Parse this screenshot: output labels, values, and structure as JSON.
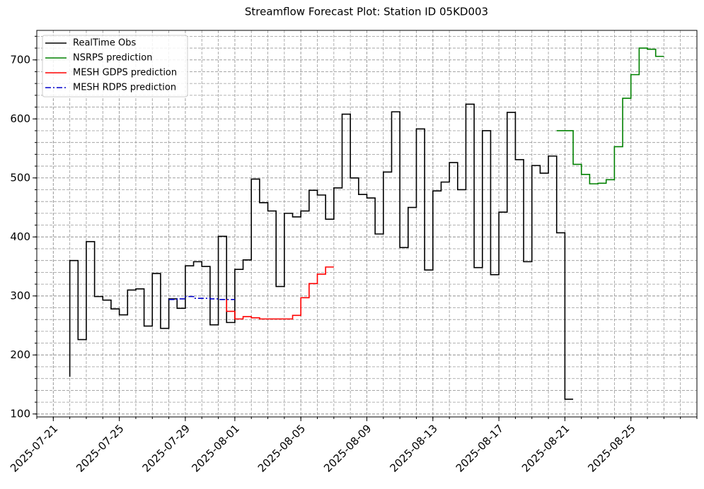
{
  "chart_data": {
    "type": "step",
    "title": "Streamflow Forecast Plot: Station ID 05KD003",
    "xlim": [
      "2025-07-20",
      "2025-08-29"
    ],
    "xticks": [
      "2025-07-21",
      "2025-07-25",
      "2025-07-29",
      "2025-08-01",
      "2025-08-05",
      "2025-08-09",
      "2025-08-13",
      "2025-08-17",
      "2025-08-21",
      "2025-08-25"
    ],
    "ylim": [
      95,
      750
    ],
    "yticks": [
      100,
      200,
      300,
      400,
      500,
      600,
      700
    ],
    "grid": true,
    "legend": "upper left",
    "series": [
      {
        "name": "RealTime Obs",
        "color": "#000000",
        "linestyle": "solid",
        "x": [
          "2025-07-22T00:00",
          "2025-07-22T12:00",
          "2025-07-23T00:00",
          "2025-07-23T12:00",
          "2025-07-24T00:00",
          "2025-07-24T12:00",
          "2025-07-25T00:00",
          "2025-07-25T12:00",
          "2025-07-26T00:00",
          "2025-07-26T12:00",
          "2025-07-27T00:00",
          "2025-07-27T12:00",
          "2025-07-28T00:00",
          "2025-07-28T12:00",
          "2025-07-29T00:00",
          "2025-07-29T12:00",
          "2025-07-30T00:00",
          "2025-07-30T12:00",
          "2025-07-31T00:00",
          "2025-07-31T12:00",
          "2025-08-01T00:00",
          "2025-08-01T12:00",
          "2025-08-02T00:00",
          "2025-08-02T12:00",
          "2025-08-03T00:00",
          "2025-08-03T12:00",
          "2025-08-04T00:00",
          "2025-08-04T12:00",
          "2025-08-05T00:00",
          "2025-08-05T12:00",
          "2025-08-06T00:00",
          "2025-08-06T12:00",
          "2025-08-07T00:00",
          "2025-08-07T12:00",
          "2025-08-08T00:00",
          "2025-08-08T12:00",
          "2025-08-09T00:00",
          "2025-08-09T12:00",
          "2025-08-10T00:00",
          "2025-08-10T12:00",
          "2025-08-11T00:00",
          "2025-08-11T12:00",
          "2025-08-12T00:00",
          "2025-08-12T12:00",
          "2025-08-13T00:00",
          "2025-08-13T12:00",
          "2025-08-14T00:00",
          "2025-08-14T12:00",
          "2025-08-15T00:00",
          "2025-08-15T12:00",
          "2025-08-16T00:00",
          "2025-08-16T12:00",
          "2025-08-17T00:00",
          "2025-08-17T12:00",
          "2025-08-18T00:00",
          "2025-08-18T12:00",
          "2025-08-19T00:00",
          "2025-08-19T12:00",
          "2025-08-20T00:00",
          "2025-08-20T12:00",
          "2025-08-21T00:00",
          "2025-08-21T12:00"
        ],
        "values": [
          163,
          360,
          226,
          392,
          299,
          293,
          278,
          268,
          310,
          312,
          249,
          338,
          245,
          295,
          279,
          351,
          358,
          350,
          251,
          401,
          255,
          345,
          361,
          498,
          458,
          444,
          316,
          440,
          434,
          444,
          479,
          471,
          430,
          483,
          608,
          500,
          472,
          466,
          405,
          510,
          612,
          382,
          450,
          583,
          344,
          478,
          493,
          526,
          480,
          625,
          348,
          580,
          336,
          442,
          611,
          531,
          358,
          521,
          508,
          537,
          407,
          125
        ]
      },
      {
        "name": "NSRPS prediction",
        "color": "#008000",
        "linestyle": "solid",
        "x": [
          "2025-08-20T12:00",
          "2025-08-21T00:00",
          "2025-08-21T12:00",
          "2025-08-22T00:00",
          "2025-08-22T12:00",
          "2025-08-23T00:00",
          "2025-08-23T12:00",
          "2025-08-24T00:00",
          "2025-08-24T12:00",
          "2025-08-25T00:00",
          "2025-08-25T12:00",
          "2025-08-26T00:00",
          "2025-08-26T12:00",
          "2025-08-27T00:00"
        ],
        "values": [
          580,
          580,
          580,
          523,
          506,
          490,
          491,
          497,
          553,
          635,
          675,
          720,
          718,
          706
        ]
      },
      {
        "name": "MESH GDPS prediction",
        "color": "#ff0000",
        "linestyle": "solid",
        "x": [
          "2025-07-31T12:00",
          "2025-08-01T00:00",
          "2025-08-01T12:00",
          "2025-08-02T00:00",
          "2025-08-02T12:00",
          "2025-08-03T00:00",
          "2025-08-03T12:00",
          "2025-08-04T00:00",
          "2025-08-04T12:00",
          "2025-08-05T00:00",
          "2025-08-05T12:00",
          "2025-08-06T00:00",
          "2025-08-06T12:00",
          "2025-08-07T00:00"
        ],
        "values": [
          294,
          274,
          261,
          265,
          263,
          261,
          261,
          261,
          261,
          267,
          297,
          321,
          337,
          349
        ]
      },
      {
        "name": "MESH RDPS prediction",
        "color": "#0000cc",
        "linestyle": "dashdot",
        "x": [
          "2025-07-28T00:00",
          "2025-07-28T12:00",
          "2025-07-29T00:00",
          "2025-07-29T12:00",
          "2025-07-30T00:00",
          "2025-07-30T12:00",
          "2025-07-31T00:00",
          "2025-07-31T12:00",
          "2025-08-01T00:00"
        ],
        "values": [
          294,
          294,
          295,
          299,
          296,
          296,
          295,
          294,
          294
        ]
      }
    ]
  }
}
